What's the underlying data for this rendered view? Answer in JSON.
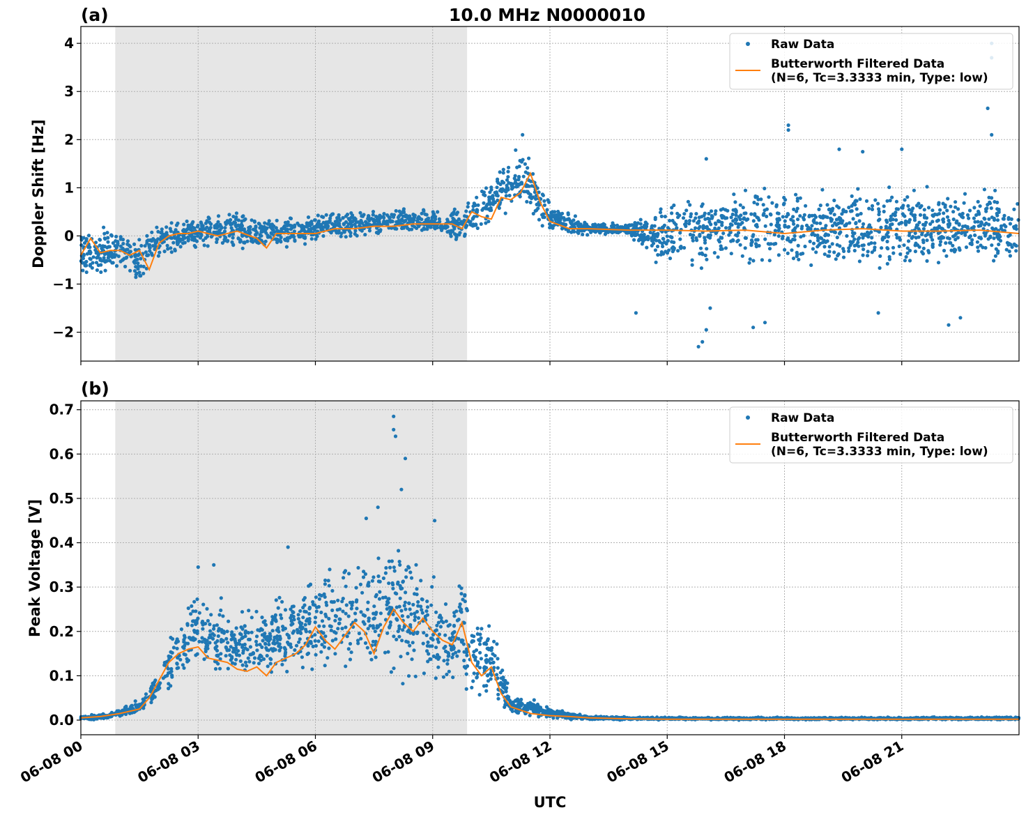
{
  "figure": {
    "title": "10.0 MHz N0000010",
    "xlabel": "UTC"
  },
  "colors": {
    "raw": "#1f77b4",
    "filtered": "#ff7f0e",
    "night_shade": "#e6e6e6",
    "grid": "#b0b0b0"
  },
  "legend": {
    "raw_label": "Raw Data",
    "filtered_label_line1": "Butterworth Filtered Data",
    "filtered_label_line2": "(N=6, Tc=3.3333 min, Type: low)",
    "placement": "top-right"
  },
  "chart_data": [
    {
      "type": "scatter",
      "panel_label": "(a)",
      "title": "10.0 MHz N0000010",
      "xlabel": "",
      "ylabel": "Doppler Shift [Hz]",
      "x_unit": "hours UTC on 06-08",
      "xlim": [
        0,
        24
      ],
      "ylim": [
        -2.6,
        4.35
      ],
      "grid": true,
      "yticks": [
        -2,
        -1,
        0,
        1,
        2,
        3,
        4
      ],
      "ytick_labels": [
        "−2",
        "−1",
        "0",
        "1",
        "2",
        "3",
        "4"
      ],
      "xticks": [
        0,
        3,
        6,
        9,
        12,
        15,
        18,
        21
      ],
      "night_shade": [
        0.88,
        9.88
      ],
      "series": [
        {
          "name": "Butterworth Filtered Data",
          "kind": "line",
          "x": [
            0,
            0.25,
            0.5,
            0.75,
            1.0,
            1.25,
            1.5,
            1.75,
            2.0,
            2.25,
            2.5,
            2.75,
            3.0,
            3.5,
            4.0,
            4.5,
            4.75,
            5.0,
            5.5,
            6.0,
            6.5,
            7.0,
            7.5,
            8.0,
            8.5,
            9.0,
            9.5,
            9.75,
            10.0,
            10.25,
            10.5,
            10.75,
            11.0,
            11.25,
            11.5,
            11.75,
            12.0,
            12.5,
            13.0,
            14.0,
            15.0,
            16.0,
            17.0,
            18.0,
            19.0,
            20.0,
            21.0,
            22.0,
            23.0,
            24.0
          ],
          "y": [
            -0.4,
            -0.05,
            -0.35,
            -0.3,
            -0.3,
            -0.4,
            -0.3,
            -0.7,
            -0.15,
            0.0,
            0.05,
            0.05,
            0.1,
            0.0,
            0.1,
            -0.05,
            -0.25,
            0.05,
            0.05,
            0.05,
            0.15,
            0.15,
            0.2,
            0.2,
            0.25,
            0.25,
            0.25,
            0.15,
            0.5,
            0.4,
            0.35,
            0.8,
            0.75,
            0.9,
            1.3,
            0.7,
            0.3,
            0.15,
            0.15,
            0.12,
            0.12,
            0.1,
            0.12,
            0.05,
            0.12,
            0.15,
            0.1,
            0.1,
            0.12,
            0.05
          ]
        },
        {
          "name": "Raw Data",
          "kind": "scatter",
          "envelope_x": [
            0,
            1.0,
            1.5,
            2.0,
            3.0,
            4.0,
            5.0,
            6.0,
            7.0,
            8.0,
            9.0,
            9.75,
            10.5,
            11.0,
            11.3,
            11.75,
            12.0,
            12.5,
            13.0,
            14.0,
            14.5,
            15.0,
            16.0,
            17.0,
            18.0,
            19.0,
            20.0,
            21.0,
            22.0,
            23.0,
            24.0
          ],
          "envelope_low": [
            -1.0,
            -0.9,
            -1.3,
            -0.5,
            -0.3,
            -0.4,
            -0.35,
            -0.2,
            -0.1,
            0.0,
            0.0,
            -0.3,
            0.2,
            0.4,
            0.5,
            0.0,
            0.0,
            0.0,
            0.0,
            0.0,
            -0.5,
            -0.8,
            -0.8,
            -0.8,
            -0.8,
            -0.8,
            -0.8,
            -0.8,
            -0.8,
            -0.8,
            -0.8
          ],
          "envelope_high": [
            0.3,
            0.3,
            0.2,
            0.3,
            0.5,
            0.6,
            0.45,
            0.5,
            0.6,
            0.6,
            0.6,
            0.7,
            1.3,
            1.8,
            2.0,
            1.3,
            0.7,
            0.5,
            0.3,
            0.3,
            0.5,
            0.8,
            1.1,
            1.2,
            1.2,
            1.2,
            1.2,
            1.2,
            1.2,
            1.2,
            1.0
          ],
          "outliers_x": [
            15.8,
            15.9,
            16.0,
            16.1,
            14.2,
            17.2,
            17.5,
            18.1,
            18.1,
            19.4,
            20.0,
            20.4,
            21.0,
            22.2,
            22.5,
            23.2,
            23.3,
            23.3,
            23.3,
            11.3,
            16.0
          ],
          "outliers_y": [
            -2.3,
            -2.2,
            -1.95,
            -1.5,
            -1.6,
            -1.9,
            -1.8,
            2.3,
            2.2,
            1.8,
            1.75,
            -1.6,
            1.8,
            -1.85,
            -1.7,
            2.65,
            2.1,
            4.0,
            3.7,
            2.1,
            1.6
          ]
        }
      ]
    },
    {
      "type": "scatter",
      "panel_label": "(b)",
      "title": "",
      "xlabel": "UTC",
      "ylabel": "Peak Voltage [V]",
      "x_unit": "hours UTC on 06-08",
      "xlim": [
        0,
        24
      ],
      "ylim": [
        -0.033,
        0.72
      ],
      "grid": true,
      "yticks": [
        0.0,
        0.1,
        0.2,
        0.3,
        0.4,
        0.5,
        0.6,
        0.7
      ],
      "ytick_labels": [
        "0.0",
        "0.1",
        "0.2",
        "0.3",
        "0.4",
        "0.5",
        "0.6",
        "0.7"
      ],
      "xticks": [
        0,
        3,
        6,
        9,
        12,
        15,
        18,
        21
      ],
      "xtick_labels": [
        "06-08 00",
        "06-08 03",
        "06-08 06",
        "06-08 09",
        "06-08 12",
        "06-08 15",
        "06-08 18",
        "06-08 21"
      ],
      "night_shade": [
        0.88,
        9.88
      ],
      "series": [
        {
          "name": "Butterworth Filtered Data",
          "kind": "line",
          "x": [
            0,
            0.5,
            1.0,
            1.5,
            1.75,
            2.0,
            2.25,
            2.5,
            2.75,
            3.0,
            3.25,
            3.5,
            3.75,
            4.0,
            4.25,
            4.5,
            4.75,
            5.0,
            5.25,
            5.5,
            5.75,
            6.0,
            6.25,
            6.5,
            6.75,
            7.0,
            7.25,
            7.5,
            7.75,
            8.0,
            8.25,
            8.5,
            8.75,
            9.0,
            9.25,
            9.5,
            9.75,
            10.0,
            10.25,
            10.5,
            10.75,
            11.0,
            11.5,
            12.0,
            12.5,
            13.0,
            14.0,
            15.0,
            18.0,
            21.0,
            24.0
          ],
          "y": [
            0.005,
            0.008,
            0.015,
            0.025,
            0.05,
            0.09,
            0.13,
            0.15,
            0.16,
            0.165,
            0.14,
            0.135,
            0.13,
            0.115,
            0.11,
            0.12,
            0.1,
            0.13,
            0.14,
            0.15,
            0.17,
            0.21,
            0.18,
            0.16,
            0.19,
            0.22,
            0.2,
            0.15,
            0.21,
            0.25,
            0.22,
            0.2,
            0.23,
            0.2,
            0.18,
            0.17,
            0.22,
            0.13,
            0.1,
            0.12,
            0.06,
            0.03,
            0.015,
            0.01,
            0.008,
            0.005,
            0.003,
            0.002,
            0.002,
            0.002,
            0.002
          ]
        },
        {
          "name": "Raw Data",
          "kind": "scatter",
          "envelope_x": [
            0,
            0.5,
            1.0,
            1.5,
            2.0,
            2.5,
            3.0,
            4.0,
            5.0,
            6.0,
            7.0,
            8.0,
            8.5,
            9.0,
            9.5,
            9.75,
            10.0,
            10.5,
            10.75,
            11.0,
            11.5,
            12.0,
            12.5,
            13.0,
            14.0,
            16.0,
            20.0,
            24.0
          ],
          "envelope_low": [
            0.0,
            0.0,
            0.005,
            0.01,
            0.04,
            0.07,
            0.08,
            0.08,
            0.07,
            0.08,
            0.08,
            0.07,
            0.07,
            0.06,
            0.06,
            0.07,
            0.04,
            0.03,
            0.02,
            0.01,
            0.005,
            0.003,
            0.0,
            0.0,
            0.0,
            0.0,
            0.0,
            0.0
          ],
          "envelope_high": [
            0.01,
            0.015,
            0.025,
            0.05,
            0.12,
            0.25,
            0.32,
            0.25,
            0.3,
            0.35,
            0.4,
            0.45,
            0.4,
            0.36,
            0.3,
            0.38,
            0.25,
            0.25,
            0.15,
            0.06,
            0.05,
            0.03,
            0.02,
            0.01,
            0.008,
            0.007,
            0.007,
            0.008
          ],
          "outliers_x": [
            8.0,
            8.0,
            8.05,
            8.3,
            7.6,
            7.3,
            3.4,
            3.0,
            5.3,
            9.05,
            8.2
          ],
          "outliers_y": [
            0.685,
            0.655,
            0.64,
            0.59,
            0.48,
            0.455,
            0.35,
            0.345,
            0.39,
            0.45,
            0.52
          ]
        }
      ]
    }
  ]
}
